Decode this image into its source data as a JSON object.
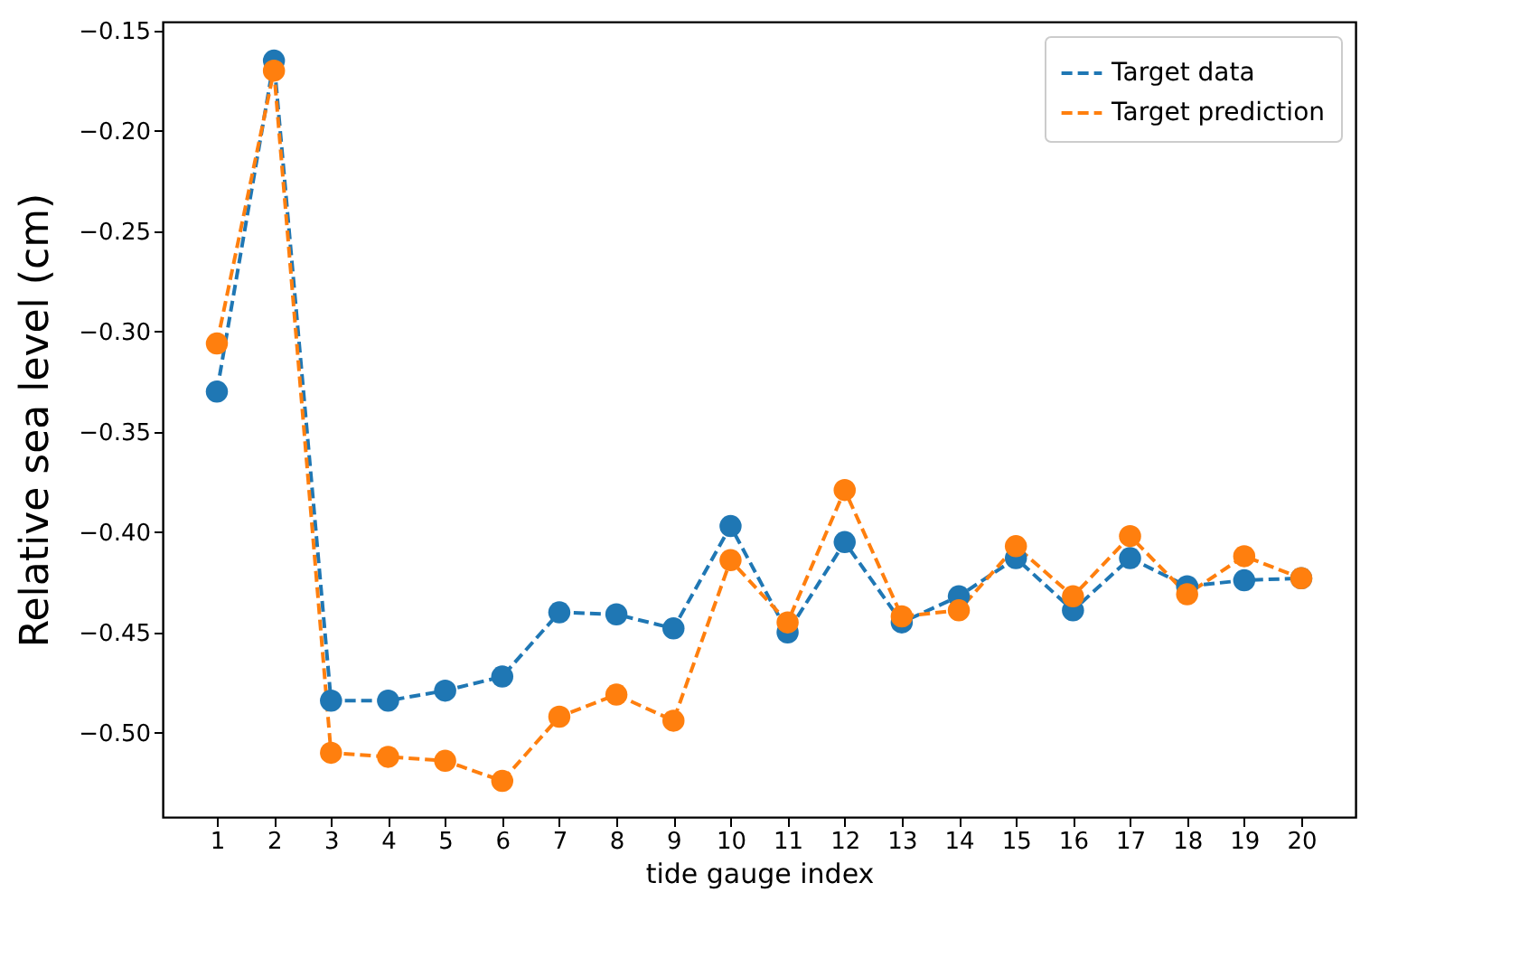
{
  "chart_data": {
    "type": "line",
    "xlabel": "tide gauge index",
    "ylabel": "Relative sea level (cm)",
    "x": [
      1,
      2,
      3,
      4,
      5,
      6,
      7,
      8,
      9,
      10,
      11,
      12,
      13,
      14,
      15,
      16,
      17,
      18,
      19,
      20
    ],
    "xlim": [
      0.05,
      20.95
    ],
    "xticks": [
      1,
      2,
      3,
      4,
      5,
      6,
      7,
      8,
      9,
      10,
      11,
      12,
      13,
      14,
      15,
      16,
      17,
      18,
      19,
      20
    ],
    "ylim": [
      -0.542,
      -0.1456
    ],
    "yticks": [
      {
        "value": -0.5,
        "label": "−0.50"
      },
      {
        "value": -0.45,
        "label": "−0.45"
      },
      {
        "value": -0.4,
        "label": "−0.40"
      },
      {
        "value": -0.35,
        "label": "−0.35"
      },
      {
        "value": -0.3,
        "label": "−0.30"
      },
      {
        "value": -0.25,
        "label": "−0.25"
      },
      {
        "value": -0.2,
        "label": "−0.20"
      },
      {
        "value": -0.15,
        "label": "−0.15"
      }
    ],
    "series": [
      {
        "name": "Target data",
        "color": "#1f77b4",
        "values": [
          -0.33,
          -0.165,
          -0.484,
          -0.484,
          -0.479,
          -0.472,
          -0.44,
          -0.441,
          -0.448,
          -0.397,
          -0.45,
          -0.405,
          -0.445,
          -0.432,
          -0.413,
          -0.439,
          -0.413,
          -0.427,
          -0.424,
          -0.423
        ]
      },
      {
        "name": "Target prediction",
        "color": "#ff7f0e",
        "values": [
          -0.306,
          -0.17,
          -0.51,
          -0.512,
          -0.514,
          -0.524,
          -0.492,
          -0.481,
          -0.494,
          -0.414,
          -0.445,
          -0.379,
          -0.442,
          -0.439,
          -0.407,
          -0.432,
          -0.402,
          -0.431,
          -0.412,
          -0.423
        ]
      }
    ],
    "marker": "circle",
    "line_style": "dashed",
    "legend": "top right",
    "grid": false
  }
}
